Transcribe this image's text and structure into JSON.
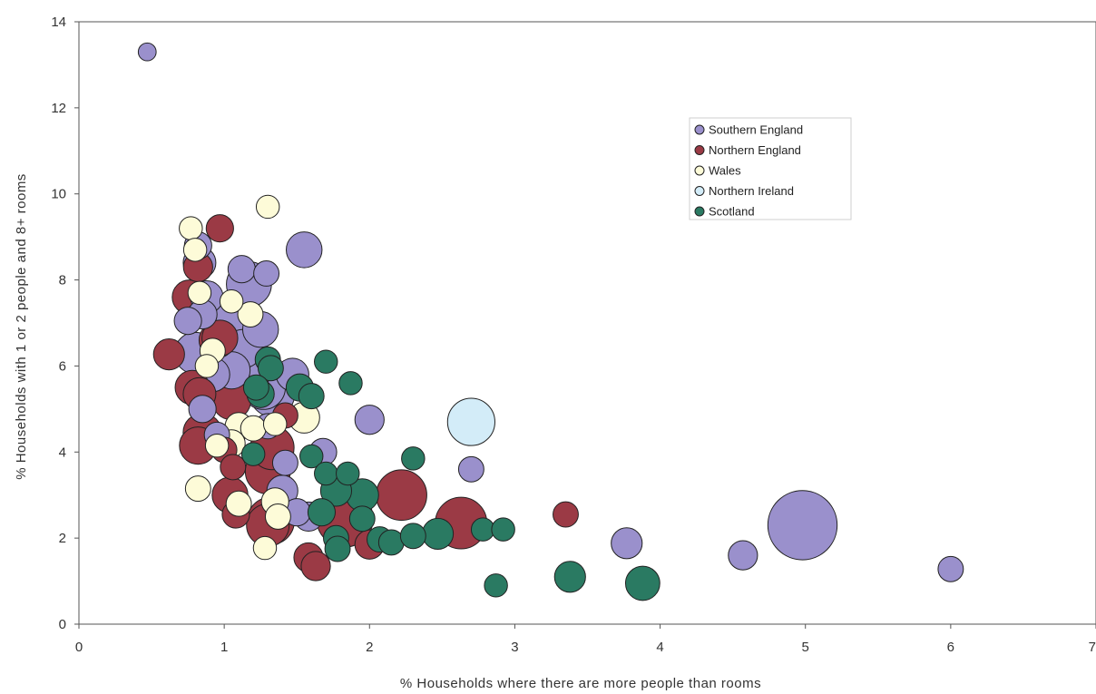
{
  "chart_data": {
    "type": "scatter",
    "xlabel": "% Households where there are more people than rooms",
    "ylabel": "% Households with 1 or 2 people and 8+ rooms",
    "xlim": [
      0,
      7
    ],
    "ylim": [
      0,
      14
    ],
    "xticks": [
      "0",
      "1",
      "2",
      "3",
      "4",
      "5",
      "6",
      "7"
    ],
    "yticks": [
      "0",
      "2",
      "4",
      "6",
      "8",
      "10",
      "12",
      "14"
    ],
    "grid": false,
    "legend_position": "top-right",
    "bubble_size": "relative",
    "series": [
      {
        "name": "Southern England",
        "color": "#9a90cc",
        "points": [
          {
            "x": 0.47,
            "y": 13.3,
            "s": 0.3
          },
          {
            "x": 0.82,
            "y": 8.8,
            "s": 0.7
          },
          {
            "x": 0.83,
            "y": 8.4,
            "s": 1.0
          },
          {
            "x": 1.12,
            "y": 8.25,
            "s": 0.7
          },
          {
            "x": 1.17,
            "y": 7.9,
            "s": 1.9
          },
          {
            "x": 1.29,
            "y": 8.15,
            "s": 0.6
          },
          {
            "x": 1.55,
            "y": 8.7,
            "s": 1.2
          },
          {
            "x": 0.88,
            "y": 7.6,
            "s": 1.0
          },
          {
            "x": 0.75,
            "y": 7.05,
            "s": 0.7
          },
          {
            "x": 0.85,
            "y": 7.2,
            "s": 0.8
          },
          {
            "x": 1.0,
            "y": 7.0,
            "s": 1.6
          },
          {
            "x": 1.13,
            "y": 6.4,
            "s": 1.4
          },
          {
            "x": 1.25,
            "y": 6.85,
            "s": 1.2
          },
          {
            "x": 0.8,
            "y": 6.3,
            "s": 1.6
          },
          {
            "x": 1.05,
            "y": 5.9,
            "s": 1.3
          },
          {
            "x": 0.92,
            "y": 5.8,
            "s": 1.1
          },
          {
            "x": 1.18,
            "y": 5.85,
            "s": 1.5
          },
          {
            "x": 1.27,
            "y": 5.5,
            "s": 1.8
          },
          {
            "x": 1.33,
            "y": 5.35,
            "s": 1.9
          },
          {
            "x": 1.47,
            "y": 5.8,
            "s": 1.0
          },
          {
            "x": 0.85,
            "y": 5.0,
            "s": 0.7
          },
          {
            "x": 0.95,
            "y": 4.4,
            "s": 0.6
          },
          {
            "x": 1.3,
            "y": 4.6,
            "s": 0.6
          },
          {
            "x": 1.42,
            "y": 3.75,
            "s": 0.6
          },
          {
            "x": 1.4,
            "y": 3.1,
            "s": 0.9
          },
          {
            "x": 1.5,
            "y": 2.6,
            "s": 0.7
          },
          {
            "x": 1.58,
            "y": 2.5,
            "s": 0.8
          },
          {
            "x": 1.68,
            "y": 4.0,
            "s": 0.7
          },
          {
            "x": 2.0,
            "y": 4.75,
            "s": 0.8
          },
          {
            "x": 2.7,
            "y": 3.6,
            "s": 0.6
          },
          {
            "x": 3.77,
            "y": 1.88,
            "s": 0.9
          },
          {
            "x": 4.57,
            "y": 1.6,
            "s": 0.8
          },
          {
            "x": 4.98,
            "y": 2.3,
            "s": 4.5
          },
          {
            "x": 6.0,
            "y": 1.28,
            "s": 0.6
          }
        ]
      },
      {
        "name": "Northern England",
        "color": "#9b3a45",
        "points": [
          {
            "x": 0.97,
            "y": 9.2,
            "s": 0.7
          },
          {
            "x": 0.82,
            "y": 8.3,
            "s": 0.8
          },
          {
            "x": 0.76,
            "y": 7.6,
            "s": 1.1
          },
          {
            "x": 0.62,
            "y": 6.27,
            "s": 0.9
          },
          {
            "x": 0.95,
            "y": 6.6,
            "s": 1.2
          },
          {
            "x": 0.97,
            "y": 6.65,
            "s": 1.2
          },
          {
            "x": 0.78,
            "y": 5.5,
            "s": 1.1
          },
          {
            "x": 0.83,
            "y": 5.35,
            "s": 1.0
          },
          {
            "x": 1.05,
            "y": 5.2,
            "s": 1.4
          },
          {
            "x": 0.85,
            "y": 4.45,
            "s": 1.4
          },
          {
            "x": 0.82,
            "y": 4.15,
            "s": 1.3
          },
          {
            "x": 1.0,
            "y": 4.05,
            "s": 0.6
          },
          {
            "x": 1.06,
            "y": 3.65,
            "s": 0.6
          },
          {
            "x": 1.33,
            "y": 4.1,
            "s": 1.8
          },
          {
            "x": 1.3,
            "y": 3.55,
            "s": 1.9
          },
          {
            "x": 1.04,
            "y": 3.0,
            "s": 1.2
          },
          {
            "x": 1.08,
            "y": 2.55,
            "s": 0.7
          },
          {
            "x": 1.32,
            "y": 2.4,
            "s": 2.1
          },
          {
            "x": 1.3,
            "y": 2.3,
            "s": 1.7
          },
          {
            "x": 1.42,
            "y": 4.85,
            "s": 0.6
          },
          {
            "x": 1.83,
            "y": 2.45,
            "s": 3.0
          },
          {
            "x": 1.58,
            "y": 1.55,
            "s": 0.8
          },
          {
            "x": 1.63,
            "y": 1.35,
            "s": 0.8
          },
          {
            "x": 2.0,
            "y": 1.85,
            "s": 0.8
          },
          {
            "x": 2.22,
            "y": 3.0,
            "s": 2.4
          },
          {
            "x": 2.63,
            "y": 2.35,
            "s": 2.5
          },
          {
            "x": 3.35,
            "y": 2.55,
            "s": 0.6
          }
        ]
      },
      {
        "name": "Wales",
        "color": "#fdfbd8",
        "points": [
          {
            "x": 0.77,
            "y": 9.2,
            "s": 0.5
          },
          {
            "x": 1.3,
            "y": 9.7,
            "s": 0.5
          },
          {
            "x": 0.8,
            "y": 8.7,
            "s": 0.5
          },
          {
            "x": 0.83,
            "y": 7.7,
            "s": 0.5
          },
          {
            "x": 1.05,
            "y": 7.5,
            "s": 0.5
          },
          {
            "x": 1.18,
            "y": 7.2,
            "s": 0.6
          },
          {
            "x": 0.92,
            "y": 6.35,
            "s": 0.6
          },
          {
            "x": 0.88,
            "y": 6.0,
            "s": 0.5
          },
          {
            "x": 1.1,
            "y": 4.6,
            "s": 0.7
          },
          {
            "x": 1.2,
            "y": 4.55,
            "s": 0.6
          },
          {
            "x": 1.05,
            "y": 4.2,
            "s": 0.7
          },
          {
            "x": 0.95,
            "y": 4.15,
            "s": 0.5
          },
          {
            "x": 1.35,
            "y": 4.65,
            "s": 0.5
          },
          {
            "x": 1.55,
            "y": 4.8,
            "s": 0.9
          },
          {
            "x": 0.82,
            "y": 3.15,
            "s": 0.6
          },
          {
            "x": 1.1,
            "y": 2.8,
            "s": 0.6
          },
          {
            "x": 1.35,
            "y": 2.85,
            "s": 0.7
          },
          {
            "x": 1.37,
            "y": 2.5,
            "s": 0.6
          },
          {
            "x": 1.28,
            "y": 1.77,
            "s": 0.5
          }
        ]
      },
      {
        "name": "Northern Ireland",
        "color": "#d3ecf8",
        "points": [
          {
            "x": 2.7,
            "y": 4.7,
            "s": 2.1
          }
        ]
      },
      {
        "name": "Scotland",
        "color": "#2a7a62",
        "points": [
          {
            "x": 1.7,
            "y": 6.1,
            "s": 0.5
          },
          {
            "x": 1.3,
            "y": 6.15,
            "s": 0.6
          },
          {
            "x": 1.32,
            "y": 5.95,
            "s": 0.6
          },
          {
            "x": 1.22,
            "y": 5.5,
            "s": 0.6
          },
          {
            "x": 1.25,
            "y": 5.35,
            "s": 0.7
          },
          {
            "x": 1.52,
            "y": 5.5,
            "s": 0.7
          },
          {
            "x": 1.6,
            "y": 5.3,
            "s": 0.6
          },
          {
            "x": 1.87,
            "y": 5.6,
            "s": 0.5
          },
          {
            "x": 1.2,
            "y": 3.95,
            "s": 0.5
          },
          {
            "x": 1.6,
            "y": 3.9,
            "s": 0.5
          },
          {
            "x": 1.7,
            "y": 3.5,
            "s": 0.5
          },
          {
            "x": 1.85,
            "y": 3.5,
            "s": 0.5
          },
          {
            "x": 2.3,
            "y": 3.85,
            "s": 0.5
          },
          {
            "x": 1.77,
            "y": 3.1,
            "s": 0.9
          },
          {
            "x": 1.95,
            "y": 3.0,
            "s": 1.0
          },
          {
            "x": 1.67,
            "y": 2.6,
            "s": 0.7
          },
          {
            "x": 1.77,
            "y": 2.0,
            "s": 0.6
          },
          {
            "x": 1.78,
            "y": 1.75,
            "s": 0.6
          },
          {
            "x": 1.95,
            "y": 2.45,
            "s": 0.6
          },
          {
            "x": 2.07,
            "y": 1.97,
            "s": 0.6
          },
          {
            "x": 2.15,
            "y": 1.9,
            "s": 0.6
          },
          {
            "x": 2.3,
            "y": 2.05,
            "s": 0.6
          },
          {
            "x": 2.47,
            "y": 2.1,
            "s": 0.9
          },
          {
            "x": 2.78,
            "y": 2.2,
            "s": 0.5
          },
          {
            "x": 2.92,
            "y": 2.2,
            "s": 0.5
          },
          {
            "x": 2.87,
            "y": 0.9,
            "s": 0.5
          },
          {
            "x": 3.38,
            "y": 1.1,
            "s": 0.9
          },
          {
            "x": 3.88,
            "y": 0.95,
            "s": 1.1
          }
        ]
      }
    ]
  }
}
